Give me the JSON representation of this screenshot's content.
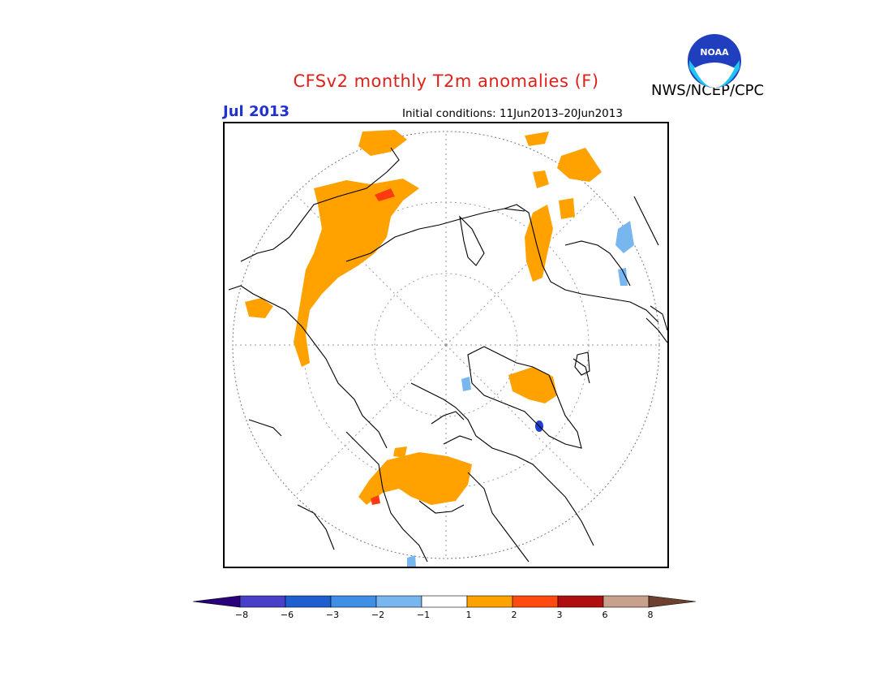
{
  "title": "CFSv2 monthly T2m anomalies (F)",
  "valid_month": "Jul 2013",
  "initial_conditions": "Initial conditions: 11Jun2013–20Jun2013",
  "agency": "NWS/NCEP/CPC",
  "logo_text": "NOAA",
  "map": {
    "projection": "north-polar-stereographic",
    "region": "Northern Hemisphere (polar)"
  },
  "colorbar": {
    "tick_labels": [
      "−8",
      "−6",
      "−3",
      "−2",
      "−1",
      "1",
      "2",
      "3",
      "6",
      "8"
    ],
    "colors": [
      "#2a007a",
      "#4a3fc8",
      "#1e5fd0",
      "#3f8fe6",
      "#78b6f0",
      "#ffffff",
      "#ffa200",
      "#ff4b10",
      "#b00f0f",
      "#c8a08c",
      "#6e4030"
    ]
  }
}
